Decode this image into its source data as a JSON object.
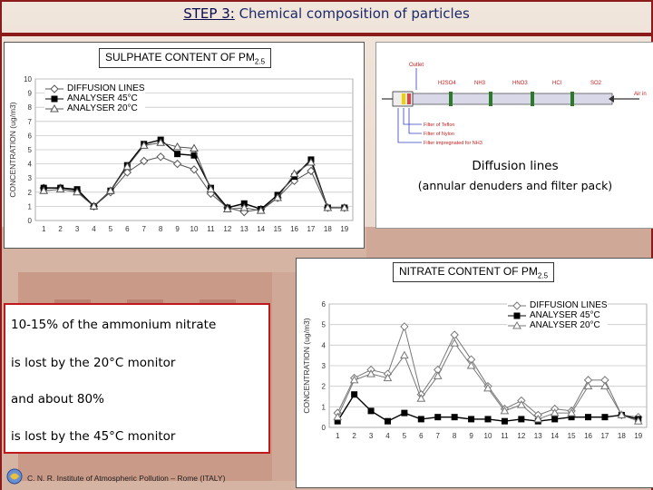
{
  "header": {
    "step_label": "STEP 3:",
    "rest_label": " Chemical composition of particles"
  },
  "notes": {
    "line1": "10-15% of the ammonium nitrate",
    "line2": "is lost by the 20°C monitor",
    "line3": "and about 80%",
    "line4": "is lost by the 45°C monitor"
  },
  "footer": {
    "institute": "C. N. R. Institute of Atmospheric Pollution – Rome (ITALY)",
    "logo_icon": "cnr-logo-icon"
  },
  "diffusion_diagram": {
    "caption_line1": "Diffusion lines",
    "caption_line2": "(annular denuders and filter pack)",
    "labels": [
      "Outlet",
      "H2SO4",
      "NH3",
      "HNO3",
      "HCl",
      "SO2",
      "Air in"
    ],
    "filter_labels": [
      "Filter of Teflon",
      "Filter of Nylon",
      "Filter impregnated for NH3"
    ]
  },
  "colors": {
    "frame": "#8b1a1a",
    "title_text": "#1a2a6a",
    "text_border": "#c0191d"
  },
  "chart_data": [
    {
      "type": "line",
      "title": "SULPHATE CONTENT OF PM",
      "title_sub": "2.5",
      "ylabel": "CONCENTRATION (ug/m3)",
      "xlabel": "",
      "ylim": [
        0,
        10
      ],
      "yticks": [
        0,
        1,
        2,
        3,
        4,
        5,
        6,
        7,
        8,
        9,
        10
      ],
      "x": [
        1,
        2,
        3,
        4,
        5,
        6,
        7,
        8,
        9,
        10,
        11,
        12,
        13,
        14,
        15,
        16,
        17,
        18,
        19
      ],
      "grid": true,
      "legend": "top-left",
      "series": [
        {
          "name": "DIFFUSION LINES",
          "marker": "diamond-open",
          "color": "#555555",
          "values": [
            2.3,
            2.3,
            2.1,
            1.0,
            2.0,
            3.4,
            4.2,
            4.5,
            4.0,
            3.6,
            1.9,
            0.9,
            0.6,
            0.8,
            1.6,
            2.8,
            3.5,
            0.9,
            0.9
          ]
        },
        {
          "name": "ANALYSER 45°C",
          "marker": "square-filled",
          "color": "#000000",
          "values": [
            2.3,
            2.3,
            2.2,
            1.0,
            2.1,
            3.9,
            5.4,
            5.7,
            4.7,
            4.6,
            2.3,
            0.9,
            1.2,
            0.8,
            1.8,
            3.1,
            4.3,
            0.9,
            0.9
          ]
        },
        {
          "name": "ANALYSER 20°C",
          "marker": "triangle-open",
          "color": "#555555",
          "values": [
            2.1,
            2.2,
            2.0,
            1.0,
            2.1,
            3.8,
            5.3,
            5.5,
            5.2,
            5.1,
            2.2,
            0.8,
            0.9,
            0.7,
            1.6,
            3.3,
            4.1,
            0.9,
            0.9
          ]
        }
      ]
    },
    {
      "type": "line",
      "title": "NITRATE CONTENT OF PM",
      "title_sub": "2.5",
      "ylabel": "CONCENTRATION (ug/m3)",
      "xlabel": "",
      "ylim": [
        0,
        6
      ],
      "yticks": [
        0,
        1,
        2,
        3,
        4,
        5,
        6
      ],
      "x": [
        1,
        2,
        3,
        4,
        5,
        6,
        7,
        8,
        9,
        10,
        11,
        12,
        13,
        14,
        15,
        16,
        17,
        18,
        19
      ],
      "grid": true,
      "legend": "top-right",
      "series": [
        {
          "name": "DIFFUSION LINES",
          "marker": "diamond-open",
          "color": "#777777",
          "values": [
            0.7,
            2.4,
            2.8,
            2.6,
            4.9,
            1.6,
            2.8,
            4.5,
            3.3,
            2.0,
            0.9,
            1.3,
            0.6,
            0.9,
            0.8,
            2.3,
            2.3,
            0.6,
            0.5
          ]
        },
        {
          "name": "ANALYSER 45°C",
          "marker": "square-filled",
          "color": "#000000",
          "values": [
            0.3,
            1.6,
            0.8,
            0.3,
            0.7,
            0.4,
            0.5,
            0.5,
            0.4,
            0.4,
            0.3,
            0.4,
            0.3,
            0.4,
            0.5,
            0.5,
            0.5,
            0.6,
            0.4
          ]
        },
        {
          "name": "ANALYSER 20°C",
          "marker": "triangle-open",
          "color": "#777777",
          "values": [
            0.5,
            2.3,
            2.6,
            2.4,
            3.5,
            1.4,
            2.5,
            4.1,
            3.0,
            1.9,
            0.8,
            1.1,
            0.4,
            0.7,
            0.7,
            2.0,
            2.0,
            0.6,
            0.3
          ]
        }
      ]
    }
  ]
}
